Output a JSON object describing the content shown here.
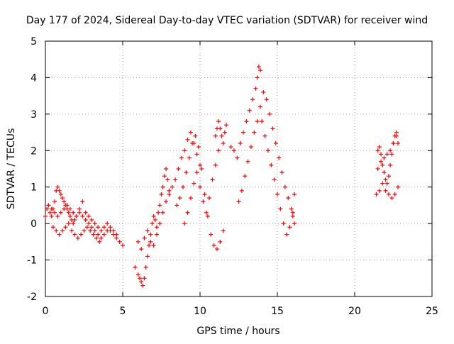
{
  "chart_data": {
    "type": "scatter",
    "title": "Day 177 of 2024, Sidereal Day-to-day VTEC variation (SDTVAR) for receiver wind",
    "xlabel": "GPS time / hours",
    "ylabel": "SDTVAR / TECUs",
    "xlim": [
      0,
      25
    ],
    "ylim": [
      -2,
      5
    ],
    "xticks": [
      0,
      5,
      10,
      15,
      20,
      25
    ],
    "yticks": [
      -2,
      -1,
      0,
      1,
      2,
      3,
      4,
      5
    ],
    "xtick_labels": [
      "0",
      "5",
      "10",
      "15",
      "20",
      "25"
    ],
    "ytick_labels": [
      "-2",
      "-1",
      "0",
      "1",
      "2",
      "3",
      "4",
      "5"
    ],
    "grid": true,
    "marker": "+",
    "series": [
      {
        "name": "SDTVAR",
        "color": "#ff0000",
        "x": [
          0.0,
          0.1,
          0.2,
          0.3,
          0.4,
          0.5,
          0.6,
          0.7,
          0.8,
          0.9,
          1.0,
          1.1,
          1.2,
          1.3,
          1.4,
          1.5,
          1.6,
          1.7,
          1.8,
          1.9,
          2.0,
          2.2,
          2.4,
          2.6,
          2.8,
          3.0,
          3.2,
          3.4,
          3.6,
          3.8,
          4.0,
          4.2,
          4.4,
          4.6,
          4.8,
          5.0,
          0.2,
          0.4,
          0.6,
          0.8,
          1.0,
          1.2,
          1.4,
          1.6,
          1.8,
          2.0,
          2.2,
          2.4,
          2.6,
          2.8,
          3.0,
          3.2,
          3.4,
          3.6,
          3.8,
          4.0,
          4.2,
          4.4,
          4.6,
          0.5,
          0.7,
          0.9,
          1.1,
          1.3,
          1.5,
          1.7,
          1.9,
          2.1,
          2.3,
          2.5,
          2.7,
          2.9,
          3.1,
          3.3,
          3.5,
          5.8,
          6.0,
          6.1,
          6.2,
          6.3,
          6.4,
          6.5,
          6.6,
          6.7,
          6.8,
          6.9,
          7.0,
          7.1,
          7.2,
          7.3,
          7.4,
          7.5,
          7.6,
          7.7,
          7.8,
          7.9,
          8.0,
          6.0,
          6.2,
          6.4,
          6.6,
          6.8,
          7.0,
          7.2,
          7.4,
          7.6,
          7.8,
          8.0,
          8.2,
          8.4,
          8.6,
          8.8,
          9.0,
          9.2,
          9.4,
          9.6,
          9.8,
          10.0,
          8.5,
          8.7,
          8.9,
          9.1,
          9.3,
          9.5,
          9.7,
          9.9,
          10.1,
          10.3,
          10.5,
          10.7,
          10.9,
          11.1,
          11.3,
          11.5,
          9.0,
          9.2,
          9.4,
          9.6,
          9.8,
          10.0,
          10.2,
          10.4,
          10.6,
          10.8,
          11.0,
          11.2,
          11.0,
          11.1,
          11.2,
          11.3,
          11.4,
          11.5,
          11.6,
          11.7,
          12.0,
          12.2,
          12.4,
          12.6,
          12.8,
          13.0,
          13.2,
          13.4,
          13.6,
          13.7,
          13.8,
          13.9,
          12.5,
          12.7,
          12.9,
          13.1,
          13.3,
          13.5,
          13.7,
          13.9,
          14.1,
          14.3,
          14.5,
          14.7,
          14.9,
          15.1,
          15.3,
          15.5,
          15.7,
          15.9,
          16.0,
          16.1,
          14.0,
          14.2,
          14.4,
          14.6,
          14.8,
          15.0,
          15.2,
          15.4,
          15.6,
          15.8,
          16.0,
          16.1,
          21.5,
          21.6,
          21.7,
          21.8,
          21.9,
          22.0,
          22.1,
          22.2,
          22.3,
          22.4,
          22.5,
          22.6,
          22.7,
          22.8,
          21.4,
          21.6,
          21.8,
          22.0,
          22.2,
          22.4,
          22.6,
          22.8,
          21.5,
          21.7,
          21.9,
          22.1,
          22.3,
          22.5,
          22.7
        ],
        "y": [
          0.2,
          0.4,
          0.5,
          0.3,
          0.2,
          0.4,
          0.6,
          0.9,
          1.0,
          0.9,
          0.8,
          0.7,
          0.6,
          0.5,
          0.4,
          0.3,
          0.2,
          0.1,
          0.0,
          0.1,
          0.2,
          0.3,
          0.2,
          0.1,
          0.0,
          -0.1,
          -0.2,
          -0.3,
          -0.4,
          -0.3,
          -0.2,
          -0.2,
          -0.3,
          -0.4,
          -0.5,
          -0.6,
          0.5,
          0.4,
          0.3,
          0.2,
          0.3,
          0.4,
          0.5,
          0.4,
          0.3,
          0.2,
          0.4,
          0.6,
          0.3,
          0.2,
          0.1,
          0.0,
          -0.1,
          -0.2,
          -0.1,
          0.0,
          -0.1,
          -0.2,
          -0.3,
          -0.1,
          -0.2,
          -0.3,
          -0.2,
          -0.1,
          0.0,
          -0.2,
          -0.3,
          -0.4,
          -0.3,
          -0.2,
          -0.1,
          -0.2,
          -0.3,
          -0.4,
          -0.5,
          -1.2,
          -1.4,
          -1.5,
          -1.6,
          -1.7,
          -1.5,
          -1.2,
          -0.9,
          -0.6,
          -0.3,
          0.0,
          0.2,
          0.1,
          -0.1,
          0.3,
          0.5,
          0.8,
          1.0,
          1.3,
          1.5,
          1.2,
          0.9,
          -0.5,
          -0.7,
          -0.4,
          -0.2,
          -0.5,
          -0.6,
          -0.3,
          0.0,
          0.3,
          0.6,
          0.8,
          1.0,
          1.2,
          1.5,
          1.8,
          2.0,
          2.3,
          2.5,
          2.2,
          1.9,
          1.6,
          0.5,
          0.7,
          1.0,
          1.4,
          1.8,
          2.2,
          2.4,
          2.1,
          1.5,
          0.8,
          0.2,
          -0.3,
          -0.6,
          -0.7,
          -0.5,
          -0.2,
          0.0,
          0.3,
          0.7,
          1.1,
          1.4,
          1.0,
          0.6,
          0.3,
          0.7,
          1.2,
          1.6,
          2.0,
          2.4,
          2.6,
          2.8,
          2.6,
          2.4,
          2.2,
          2.5,
          2.7,
          2.1,
          2.0,
          1.8,
          2.2,
          2.5,
          2.8,
          3.1,
          3.4,
          3.7,
          4.0,
          4.3,
          4.2,
          0.6,
          0.9,
          1.3,
          1.7,
          2.1,
          2.5,
          2.8,
          3.2,
          3.6,
          3.4,
          3.0,
          2.6,
          2.2,
          1.8,
          1.4,
          1.0,
          0.7,
          0.4,
          0.2,
          0.0,
          2.8,
          2.4,
          2.0,
          1.6,
          1.2,
          0.8,
          0.4,
          0.0,
          -0.3,
          -0.1,
          0.3,
          0.8,
          2.0,
          2.1,
          1.9,
          1.6,
          1.4,
          1.2,
          1.1,
          1.3,
          1.6,
          1.9,
          2.2,
          2.4,
          2.5,
          2.2,
          0.8,
          0.9,
          1.1,
          0.9,
          0.8,
          0.7,
          0.8,
          1.0,
          1.5,
          1.7,
          1.8,
          1.9,
          2.0,
          2.2,
          2.4
        ]
      }
    ]
  }
}
